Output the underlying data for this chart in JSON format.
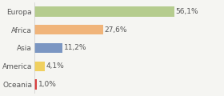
{
  "categories": [
    "Europa",
    "Africa",
    "Asia",
    "America",
    "Oceania"
  ],
  "values": [
    56.1,
    27.6,
    11.2,
    4.1,
    1.0
  ],
  "labels": [
    "56,1%",
    "27,6%",
    "11,2%",
    "4,1%",
    "1,0%"
  ],
  "bar_colors": [
    "#b5cc8e",
    "#f0b47a",
    "#7b96c2",
    "#f0d060",
    "#d94040"
  ],
  "background_color": "#f5f5f2",
  "xlim": [
    0,
    75
  ],
  "label_fontsize": 6.5,
  "tick_fontsize": 6.5,
  "bar_height": 0.55
}
